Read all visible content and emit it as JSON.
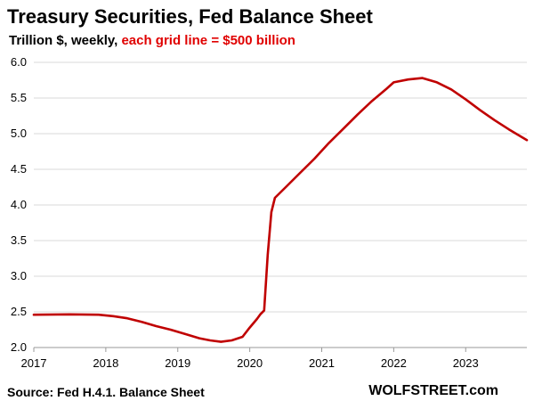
{
  "title": "Treasury Securities, Fed Balance Sheet",
  "subtitle_main": "Trillion $, weekly, ",
  "subtitle_note": "each grid line = $500 billion",
  "source": "Source: Fed H.4.1. Balance Sheet",
  "brand": "WOLFSTREET.com",
  "chart_data": {
    "type": "line",
    "title": "Treasury Securities, Fed Balance Sheet",
    "xlabel": "",
    "ylabel": "",
    "grid": "horizontal",
    "xlim": [
      2017.0,
      2023.85
    ],
    "ylim": [
      2.0,
      6.0
    ],
    "x_ticks": [
      "2017",
      "2018",
      "2019",
      "2020",
      "2021",
      "2022",
      "2023"
    ],
    "y_ticks": [
      "2.0",
      "2.5",
      "3.0",
      "3.5",
      "4.0",
      "4.5",
      "5.0",
      "5.5",
      "6.0"
    ],
    "series_color": "#c00000",
    "series": [
      {
        "x": [
          2017.0,
          2017.5,
          2017.9,
          2018.1,
          2018.3,
          2018.5,
          2018.7,
          2018.9,
          2019.1,
          2019.3,
          2019.45,
          2019.6,
          2019.75,
          2019.9,
          2020.0,
          2020.1,
          2020.15,
          2020.2,
          2020.25,
          2020.3,
          2020.35,
          2020.5,
          2020.7,
          2020.9,
          2021.1,
          2021.3,
          2021.5,
          2021.7,
          2021.9,
          2022.0,
          2022.2,
          2022.4,
          2022.6,
          2022.8,
          2023.0,
          2023.2,
          2023.4,
          2023.6,
          2023.85
        ],
        "y": [
          2.46,
          2.465,
          2.46,
          2.44,
          2.41,
          2.36,
          2.3,
          2.25,
          2.19,
          2.13,
          2.1,
          2.08,
          2.1,
          2.15,
          2.28,
          2.4,
          2.47,
          2.52,
          3.3,
          3.9,
          4.1,
          4.25,
          4.45,
          4.65,
          4.87,
          5.07,
          5.27,
          5.46,
          5.63,
          5.72,
          5.76,
          5.78,
          5.72,
          5.62,
          5.48,
          5.33,
          5.19,
          5.06,
          4.91
        ]
      }
    ]
  }
}
